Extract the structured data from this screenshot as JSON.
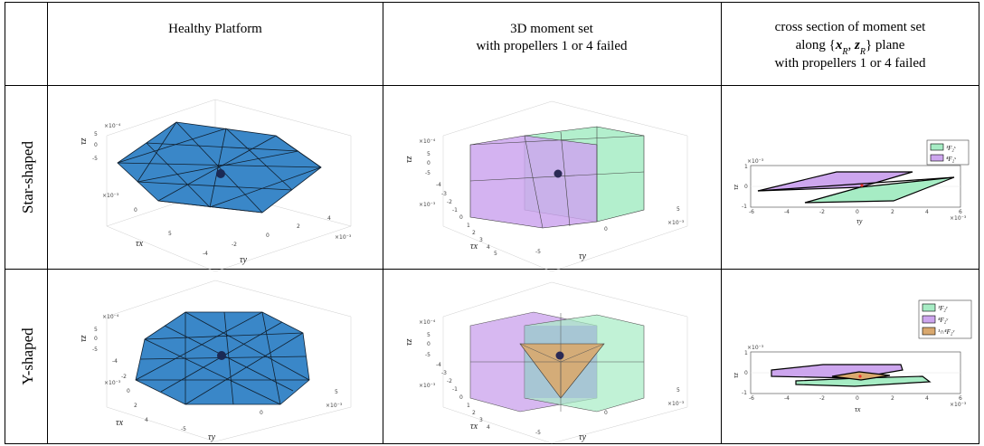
{
  "table": {
    "headers": {
      "col1": "Healthy Platform",
      "col2_line1": "3D moment set",
      "col2_line2": "with propellers 1 or 4 failed",
      "col3_line1": "cross section of moment set",
      "col3_line2_pre": "along {",
      "col3_line2_xr": "x",
      "col3_line2_sub1": "R",
      "col3_line2_comma": ", ",
      "col3_line2_zr": "z",
      "col3_line2_sub2": "R",
      "col3_line2_post": "} plane",
      "col3_line3": "with propellers 1 or 4 failed"
    },
    "rows": [
      {
        "label": "Star-shaped",
        "healthy": {
          "tau_z": "τz",
          "tau_x": "τx",
          "tau_y": "τy",
          "z_exp": "×10⁻⁴",
          "x_exp": "×10⁻³",
          "y_exp": "×10⁻³",
          "z_ticks": [
            "5",
            "0",
            "-5"
          ],
          "x_ticks": [
            "0",
            "5"
          ],
          "y_ticks": [
            "-4",
            "-2",
            "0",
            "2",
            "4"
          ]
        },
        "moment3d": {
          "tau_z": "τz",
          "tau_x": "τx",
          "tau_y": "τy",
          "z_exp": "×10⁻⁴",
          "x_exp": "×10⁻³",
          "y_exp": "×10⁻³",
          "z_ticks": [
            "5",
            "0",
            "-5"
          ],
          "x_ticks": [
            "-4",
            "-3",
            "-2",
            "-1",
            "0",
            "1",
            "2",
            "3",
            "4",
            "5"
          ],
          "y_ticks": [
            "-5",
            "0",
            "5"
          ]
        },
        "cross": {
          "ylabel": "τz",
          "xlabel": "τy",
          "y_exp": "×10⁻³",
          "x_exp": "×10⁻³",
          "y_ticks": [
            "1",
            "0",
            "-1"
          ],
          "x_ticks": [
            "-6",
            "-4",
            "-2",
            "0",
            "2",
            "4",
            "6"
          ],
          "legend": [
            "¹F₂ˢ",
            "⁴F₂ˢ"
          ]
        }
      },
      {
        "label": "Y-shaped",
        "healthy": {
          "tau_z": "τz",
          "tau_x": "τx",
          "tau_y": "τy",
          "z_exp": "×10⁻⁴",
          "x_exp": "×10⁻³",
          "y_exp": "×10⁻³",
          "z_ticks": [
            "5",
            "0",
            "-5"
          ],
          "x_ticks": [
            "-4",
            "-2",
            "0",
            "2",
            "4"
          ],
          "y_ticks": [
            "-5",
            "0",
            "5"
          ]
        },
        "moment3d": {
          "tau_z": "τz",
          "tau_x": "τx",
          "tau_y": "τy",
          "z_exp": "×10⁻⁴",
          "x_exp": "×10⁻³",
          "y_exp": "×10⁻³",
          "z_ticks": [
            "5",
            "0",
            "-5"
          ],
          "x_ticks": [
            "-4",
            "-3",
            "-2",
            "-1",
            "0",
            "1",
            "2",
            "3",
            "4"
          ],
          "y_ticks": [
            "-5",
            "0",
            "5"
          ]
        },
        "cross": {
          "ylabel": "τz",
          "xlabel": "τx",
          "y_exp": "×10⁻³",
          "x_exp": "×10⁻³",
          "y_ticks": [
            "1",
            "0",
            "-1"
          ],
          "x_ticks": [
            "-6",
            "-4",
            "-2",
            "0",
            "2",
            "4",
            "6"
          ],
          "legend": [
            "¹F₂ʸ",
            "⁴F₂ʸ",
            "¹∩⁴F₂ʸ"
          ]
        }
      }
    ]
  },
  "colors": {
    "healthy_fill": "#3a87c8",
    "green_fill": "#a6ecc4",
    "purple_fill": "#cda6ee",
    "orange_fill": "#d9a86e",
    "center_dot": "#1b2a55",
    "red_dot": "#e8332b"
  }
}
